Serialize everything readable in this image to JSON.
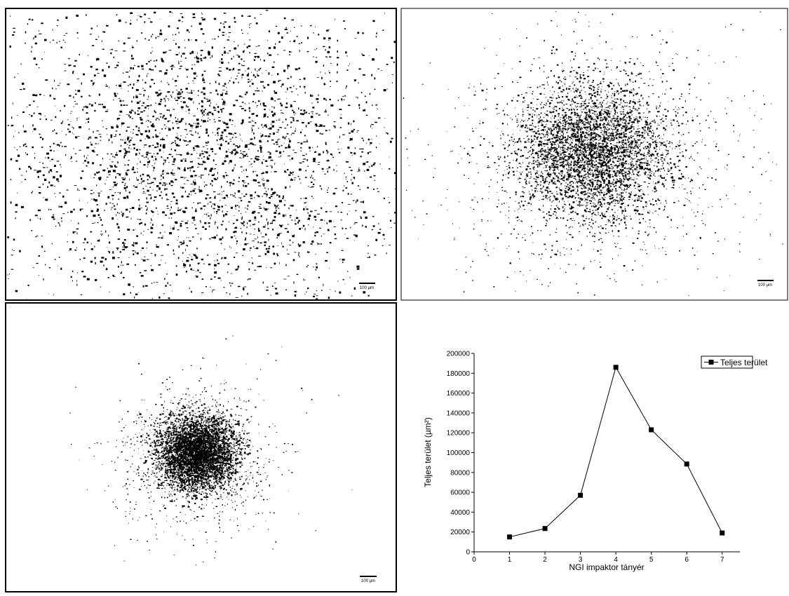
{
  "images": [
    {
      "scale_label": "100 µm"
    },
    {
      "scale_label": "100 µm"
    },
    {
      "scale_label": "100 µm"
    }
  ],
  "chart_data": {
    "type": "line",
    "x_label": "NGI impaktor tányér",
    "y_label": "Teljes terület (µm²)",
    "x": [
      1,
      2,
      3,
      4,
      5,
      6,
      7
    ],
    "series": [
      {
        "name": "Teljes terület",
        "color": "#000000",
        "values": [
          15000,
          23500,
          57000,
          186000,
          123000,
          88500,
          19000
        ]
      }
    ],
    "xlim": [
      0,
      7.5
    ],
    "xticks": [
      0,
      1,
      2,
      3,
      4,
      5,
      6,
      7
    ],
    "ylim": [
      0,
      200000
    ],
    "yticks": [
      0,
      20000,
      40000,
      60000,
      80000,
      100000,
      120000,
      140000,
      160000,
      180000,
      200000
    ],
    "legend": "top-right"
  }
}
